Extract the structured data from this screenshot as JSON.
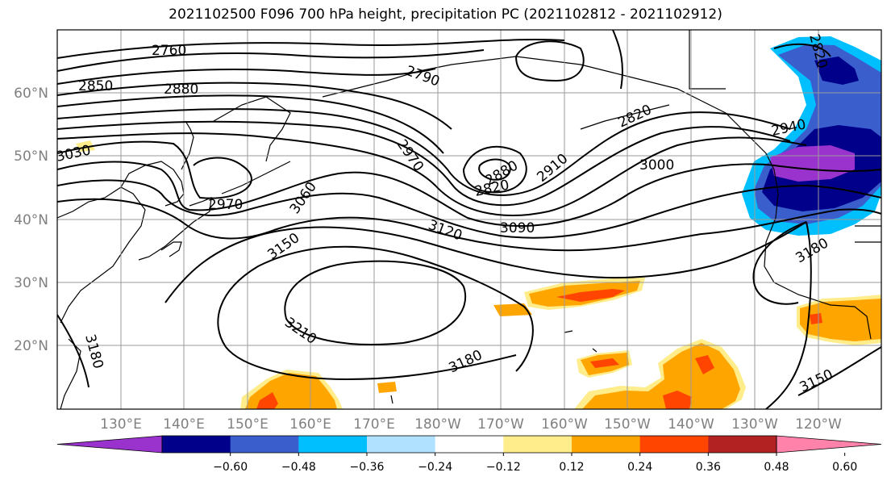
{
  "title": "2021102500 F096 700 hPa height, precipitation PC (2021102812 - 2021102912)",
  "map": {
    "lat_labels": [
      "60°N",
      "50°N",
      "40°N",
      "30°N",
      "20°N"
    ],
    "lon_labels": [
      "130°E",
      "140°E",
      "150°E",
      "160°E",
      "170°E",
      "180°W",
      "170°W",
      "160°W",
      "150°W",
      "140°W",
      "130°W",
      "120°W"
    ],
    "contour_labels": [
      "2760",
      "2850",
      "2880",
      "2790",
      "2820",
      "2940",
      "2970",
      "2910",
      "3000",
      "3030",
      "2970",
      "3060",
      "2880",
      "2820",
      "3150",
      "3120",
      "3090",
      "3180",
      "3210",
      "3180",
      "3180",
      "3150",
      "2820"
    ],
    "precip_color_legend": {
      "bounds": [
        "−0.60",
        "−0.48",
        "−0.36",
        "−0.24",
        "−0.12",
        "0.12",
        "0.24",
        "0.36",
        "0.48",
        "0.60"
      ],
      "colors": [
        "#9a32cd",
        "#00008b",
        "#3a5fcd",
        "#00bfff",
        "#b0e2ff",
        "#ffffff",
        "#ffec8b",
        "#ffa500",
        "#ff4500",
        "#b22222",
        "#ff82ab"
      ]
    }
  }
}
